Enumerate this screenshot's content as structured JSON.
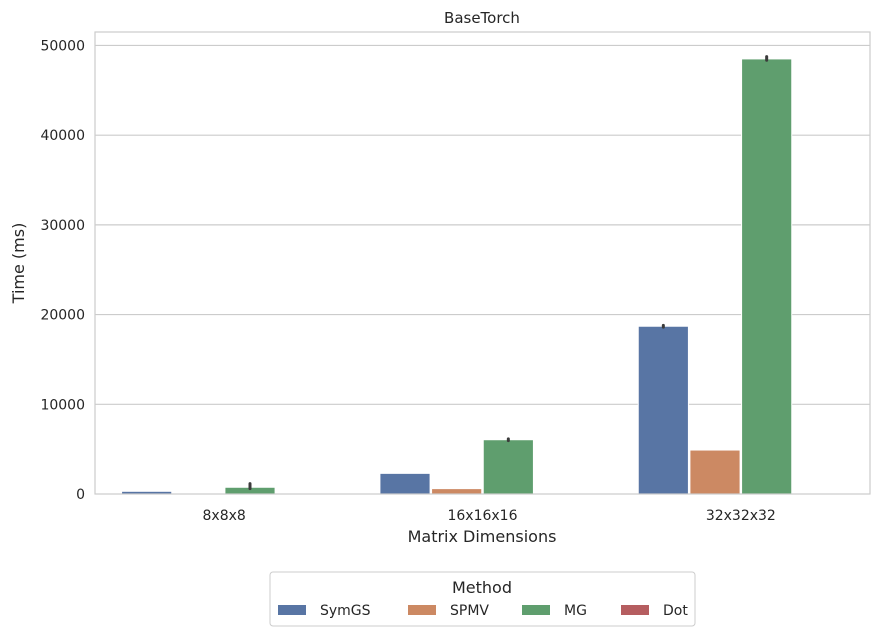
{
  "chart_data": {
    "type": "bar",
    "title": "BaseTorch",
    "xlabel": "Matrix Dimensions",
    "ylabel": "Time (ms)",
    "categories": [
      "8x8x8",
      "16x16x16",
      "32x32x32"
    ],
    "ylim": [
      0,
      51500
    ],
    "yticks": [
      0,
      10000,
      20000,
      30000,
      40000,
      50000
    ],
    "ytick_labels": [
      "0",
      "10000",
      "20000",
      "30000",
      "40000",
      "50000"
    ],
    "grid": "horizontal",
    "legend": {
      "title": "Method",
      "position": "bottom-center"
    },
    "series": [
      {
        "name": "SymGS",
        "color": "#5875a4",
        "values": [
          300,
          2300,
          18700
        ],
        "error": [
          [
            300,
            300
          ],
          [
            2300,
            2300
          ],
          [
            18600,
            18800
          ]
        ]
      },
      {
        "name": "SPMV",
        "color": "#cc8963",
        "values": [
          60,
          600,
          4900
        ],
        "error": [
          [
            60,
            60
          ],
          [
            600,
            600
          ],
          [
            4900,
            4900
          ]
        ]
      },
      {
        "name": "MG",
        "color": "#5f9e6e",
        "values": [
          750,
          6050,
          48500
        ],
        "error": [
          [
            600,
            1150
          ],
          [
            5950,
            6150
          ],
          [
            48350,
            48750
          ]
        ]
      },
      {
        "name": "Dot",
        "color": "#b55d60",
        "values": [
          5,
          10,
          20
        ],
        "error": [
          [
            5,
            5
          ],
          [
            10,
            10
          ],
          [
            20,
            20
          ]
        ]
      }
    ]
  }
}
